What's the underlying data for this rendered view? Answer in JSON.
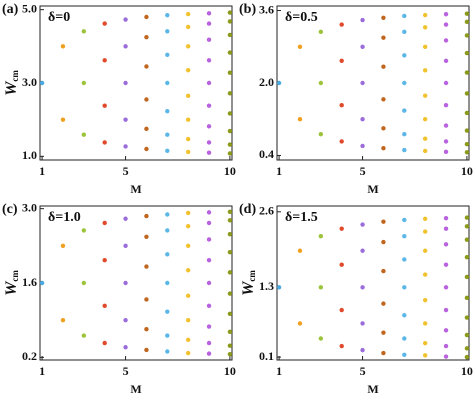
{
  "chart_data": [
    {
      "type": "scatter",
      "panel_label": "(a)",
      "title": "δ=0",
      "xlabel": "M",
      "ylabel": "W",
      "ylabel_sub": "cm",
      "xlim": [
        0.9,
        10.1
      ],
      "ylim": [
        0.9,
        5.1
      ],
      "xticks": [
        1,
        5,
        10
      ],
      "yticks": [
        {
          "value": 1,
          "label": "1.0"
        },
        {
          "value": 3,
          "label": "3.0"
        },
        {
          "value": 5,
          "label": "5.0"
        }
      ],
      "series": [
        {
          "color": "#4aa8e0",
          "x": [
            1
          ],
          "values": [
            3
          ]
        },
        {
          "color": "#f0a020",
          "x": [
            2,
            2
          ],
          "values": [
            4,
            2
          ]
        },
        {
          "color": "#9cc33a",
          "x": [
            3,
            3,
            3
          ],
          "values": [
            4.41,
            3,
            1.59
          ]
        },
        {
          "color": "#e04a2a",
          "x": [
            4,
            4,
            4,
            4
          ],
          "values": [
            4.62,
            3.62,
            2.38,
            1.38
          ]
        },
        {
          "color": "#9b6ddb",
          "x": [
            5,
            5,
            5,
            5,
            5
          ],
          "values": [
            4.73,
            4,
            3,
            2,
            1.27
          ]
        },
        {
          "color": "#c0661e",
          "x": [
            6,
            6,
            6,
            6,
            6,
            6
          ],
          "values": [
            4.8,
            4.25,
            3.45,
            2.55,
            1.75,
            1.2
          ]
        },
        {
          "color": "#5bb7e8",
          "x": [
            7,
            7,
            7,
            7,
            7,
            7,
            7
          ],
          "values": [
            4.85,
            4.41,
            3.77,
            3,
            2.23,
            1.59,
            1.15
          ]
        },
        {
          "color": "#f2c12e",
          "x": [
            8,
            8,
            8,
            8,
            8,
            8,
            8,
            8
          ],
          "values": [
            4.88,
            4.53,
            4,
            3.35,
            2.65,
            2,
            1.47,
            1.12
          ]
        },
        {
          "color": "#b862e0",
          "x": [
            9,
            9,
            9,
            9,
            9,
            9,
            9,
            9,
            9
          ],
          "values": [
            4.9,
            4.62,
            4.18,
            3.62,
            3,
            2.38,
            1.82,
            1.38,
            1.1
          ]
        },
        {
          "color": "#8c9a1a",
          "x": [
            10,
            10,
            10,
            10,
            10,
            10,
            10,
            10,
            10,
            10
          ],
          "values": [
            4.92,
            4.68,
            4.31,
            3.83,
            3.28,
            2.72,
            2.17,
            1.69,
            1.32,
            1.08
          ]
        }
      ]
    },
    {
      "type": "scatter",
      "panel_label": "(b)",
      "title": "δ=0.5",
      "xlabel": "M",
      "xlim": [
        0.9,
        10.1
      ],
      "ylim": [
        0.3,
        3.7
      ],
      "xticks": [
        1,
        5,
        10
      ],
      "yticks": [
        0.4,
        {
          "value": 2,
          "label": "2.0"
        },
        3.6
      ],
      "series": [
        {
          "color": "#4aa8e0",
          "x": [
            1
          ],
          "values": [
            2
          ]
        },
        {
          "color": "#f0a020",
          "x": [
            2,
            2
          ],
          "values": [
            2.8,
            1.2
          ]
        },
        {
          "color": "#9cc33a",
          "x": [
            3,
            3,
            3
          ],
          "values": [
            3.13,
            2,
            0.87
          ]
        },
        {
          "color": "#e04a2a",
          "x": [
            4,
            4,
            4,
            4
          ],
          "values": [
            3.29,
            2.49,
            1.51,
            0.71
          ]
        },
        {
          "color": "#9b6ddb",
          "x": [
            5,
            5,
            5,
            5,
            5
          ],
          "values": [
            3.39,
            2.8,
            2,
            1.2,
            0.61
          ]
        },
        {
          "color": "#c0661e",
          "x": [
            6,
            6,
            6,
            6,
            6,
            6
          ],
          "values": [
            3.44,
            3.0,
            2.36,
            1.64,
            1.0,
            0.56
          ]
        },
        {
          "color": "#5bb7e8",
          "x": [
            7,
            7,
            7,
            7,
            7,
            7,
            7
          ],
          "values": [
            3.48,
            3.13,
            2.61,
            2,
            1.39,
            0.87,
            0.52
          ]
        },
        {
          "color": "#f2c12e",
          "x": [
            8,
            8,
            8,
            8,
            8,
            8,
            8,
            8
          ],
          "values": [
            3.5,
            3.23,
            2.8,
            2.28,
            1.72,
            1.2,
            0.77,
            0.5
          ]
        },
        {
          "color": "#b862e0",
          "x": [
            9,
            9,
            9,
            9,
            9,
            9,
            9,
            9,
            9
          ],
          "values": [
            3.52,
            3.29,
            2.94,
            2.49,
            2,
            1.51,
            1.06,
            0.71,
            0.48
          ]
        },
        {
          "color": "#8c9a1a",
          "x": [
            10,
            10,
            10,
            10,
            10,
            10,
            10,
            10,
            10,
            10
          ],
          "values": [
            3.53,
            3.35,
            3.05,
            2.66,
            2.23,
            1.77,
            1.34,
            0.95,
            0.65,
            0.47
          ]
        }
      ]
    },
    {
      "type": "scatter",
      "panel_label": "(c)",
      "title": "δ=1.0",
      "xlabel": "M",
      "ylabel": "W",
      "ylabel_sub": "cm",
      "xlim": [
        0.9,
        10.1
      ],
      "ylim": [
        0.15,
        3.05
      ],
      "xticks": [
        1,
        5,
        10
      ],
      "yticks": [
        0.2,
        1.6,
        {
          "value": 3,
          "label": "3.0"
        }
      ],
      "series": [
        {
          "color": "#4aa8e0",
          "x": [
            1
          ],
          "values": [
            1.6
          ]
        },
        {
          "color": "#f0a020",
          "x": [
            2,
            2
          ],
          "values": [
            2.3,
            0.9
          ]
        },
        {
          "color": "#9cc33a",
          "x": [
            3,
            3,
            3
          ],
          "values": [
            2.59,
            1.6,
            0.61
          ]
        },
        {
          "color": "#e04a2a",
          "x": [
            4,
            4,
            4,
            4
          ],
          "values": [
            2.73,
            2.03,
            1.17,
            0.47
          ]
        },
        {
          "color": "#9b6ddb",
          "x": [
            5,
            5,
            5,
            5,
            5
          ],
          "values": [
            2.81,
            2.3,
            1.6,
            0.9,
            0.39
          ]
        },
        {
          "color": "#c0661e",
          "x": [
            6,
            6,
            6,
            6,
            6,
            6
          ],
          "values": [
            2.86,
            2.47,
            1.91,
            1.29,
            0.73,
            0.34
          ]
        },
        {
          "color": "#5bb7e8",
          "x": [
            7,
            7,
            7,
            7,
            7,
            7,
            7
          ],
          "values": [
            2.89,
            2.59,
            2.14,
            1.6,
            1.06,
            0.61,
            0.31
          ]
        },
        {
          "color": "#f2c12e",
          "x": [
            8,
            8,
            8,
            8,
            8,
            8,
            8,
            8
          ],
          "values": [
            2.92,
            2.67,
            2.3,
            1.84,
            1.36,
            0.9,
            0.53,
            0.28
          ]
        },
        {
          "color": "#b862e0",
          "x": [
            9,
            9,
            9,
            9,
            9,
            9,
            9,
            9,
            9
          ],
          "values": [
            2.93,
            2.73,
            2.42,
            2.03,
            1.6,
            1.17,
            0.78,
            0.47,
            0.27
          ]
        },
        {
          "color": "#8c9a1a",
          "x": [
            10,
            10,
            10,
            10,
            10,
            10,
            10,
            10,
            10,
            10
          ],
          "values": [
            2.94,
            2.78,
            2.52,
            2.18,
            1.8,
            1.4,
            1.02,
            0.68,
            0.42,
            0.26
          ]
        }
      ]
    },
    {
      "type": "scatter",
      "panel_label": "(d)",
      "title": "δ=1.5",
      "xlabel": "M",
      "ylabel": "W",
      "ylabel_sub": "cm",
      "xlim": [
        0.9,
        10.1
      ],
      "ylim": [
        0.05,
        2.7
      ],
      "xticks": [
        1,
        5,
        10
      ],
      "yticks": [
        0.1,
        1.3,
        2.6
      ],
      "series": [
        {
          "color": "#4aa8e0",
          "x": [
            1
          ],
          "values": [
            1.3
          ]
        },
        {
          "color": "#f0a020",
          "x": [
            2,
            2
          ],
          "values": [
            1.93,
            0.68
          ]
        },
        {
          "color": "#9cc33a",
          "x": [
            3,
            3,
            3
          ],
          "values": [
            2.18,
            1.3,
            0.42
          ]
        },
        {
          "color": "#e04a2a",
          "x": [
            4,
            4,
            4,
            4
          ],
          "values": [
            2.31,
            1.69,
            0.91,
            0.29
          ]
        },
        {
          "color": "#9b6ddb",
          "x": [
            5,
            5,
            5,
            5,
            5
          ],
          "values": [
            2.38,
            1.93,
            1.3,
            0.68,
            0.22
          ]
        },
        {
          "color": "#c0661e",
          "x": [
            6,
            6,
            6,
            6,
            6,
            6
          ],
          "values": [
            2.43,
            2.08,
            1.58,
            1.02,
            0.52,
            0.17
          ]
        },
        {
          "color": "#5bb7e8",
          "x": [
            7,
            7,
            7,
            7,
            7,
            7,
            7
          ],
          "values": [
            2.46,
            2.18,
            1.78,
            1.3,
            0.82,
            0.42,
            0.14
          ]
        },
        {
          "color": "#f2c12e",
          "x": [
            8,
            8,
            8,
            8,
            8,
            8,
            8,
            8
          ],
          "values": [
            2.48,
            2.26,
            1.93,
            1.52,
            1.08,
            0.68,
            0.34,
            0.13
          ]
        },
        {
          "color": "#b862e0",
          "x": [
            9,
            9,
            9,
            9,
            9,
            9,
            9,
            9,
            9
          ],
          "values": [
            2.49,
            2.31,
            2.04,
            1.69,
            1.3,
            0.91,
            0.56,
            0.29,
            0.11
          ]
        },
        {
          "color": "#8c9a1a",
          "x": [
            10,
            10,
            10,
            10,
            10,
            10,
            10,
            10,
            10,
            10
          ],
          "values": [
            2.5,
            2.35,
            2.12,
            1.82,
            1.48,
            1.12,
            0.78,
            0.48,
            0.25,
            0.1
          ]
        }
      ]
    }
  ]
}
